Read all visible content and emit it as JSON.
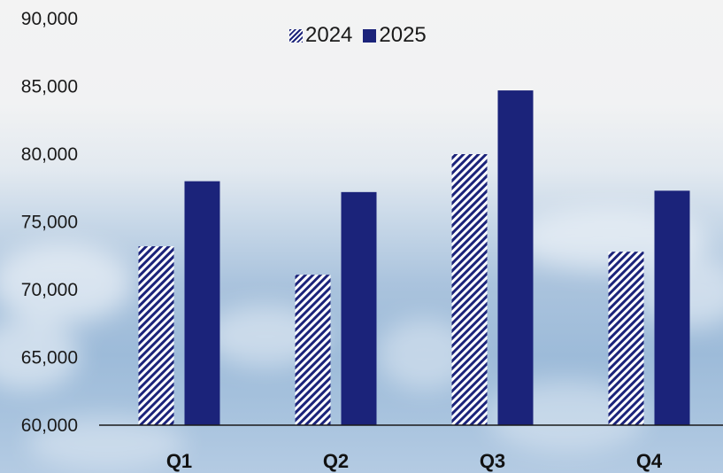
{
  "chart_data": {
    "type": "bar",
    "categories": [
      "Q1",
      "Q2",
      "Q3",
      "Q4"
    ],
    "series": [
      {
        "name": "2024",
        "values": [
          73200,
          71100,
          80000,
          72800
        ],
        "pattern": "hatched",
        "color": "#1b237a"
      },
      {
        "name": "2025",
        "values": [
          78000,
          77200,
          84700,
          77300
        ],
        "pattern": "solid",
        "color": "#1b237a"
      }
    ],
    "y_ticks": [
      "60,000",
      "65,000",
      "70,000",
      "75,000",
      "80,000",
      "85,000",
      "90,000"
    ],
    "ylim": [
      60000,
      90000
    ],
    "title": "",
    "xlabel": "",
    "ylabel": "",
    "legend_position": "top-center",
    "grid": false
  }
}
